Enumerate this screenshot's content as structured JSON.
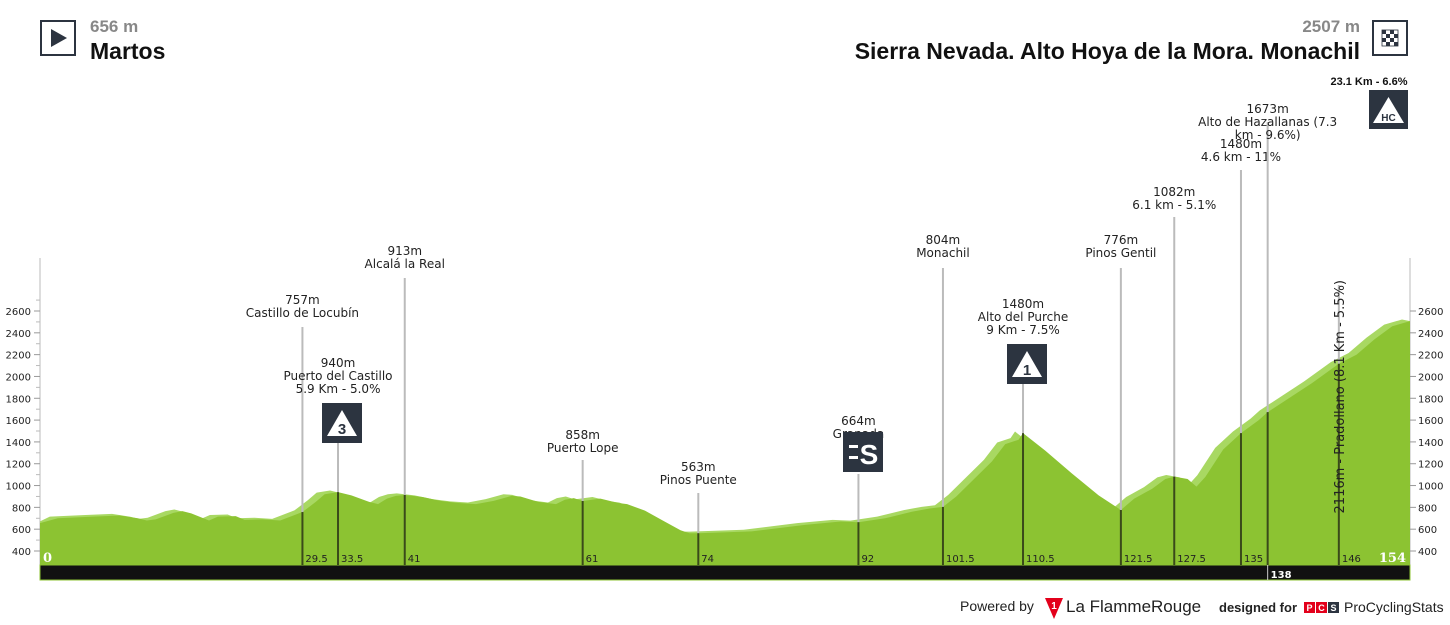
{
  "start": {
    "elevation": "656 m",
    "name": "Martos",
    "icon": "play-icon"
  },
  "finish": {
    "elevation": "2507 m",
    "name": "Sierra Nevada. Alto Hoya de la Mora. Monachil",
    "icon": "checkered-flag-icon",
    "climb_info": "23.1 Km - 6.6%",
    "category": "HC"
  },
  "footer": {
    "powered_by": "Powered by",
    "brand1": "La FlammeRouge",
    "brand1_logo": "1",
    "designed_for": "designed for",
    "brand2_logo": "PCS",
    "brand2": "ProCyclingStats"
  },
  "colors": {
    "profile": "#8cc332",
    "profile_light": "#a8d862",
    "bar": "#111111",
    "category_box": "#2c3440"
  },
  "chart_data": {
    "type": "area",
    "xlabel": "",
    "ylabel": "",
    "xlim": [
      0,
      154
    ],
    "ylim": [
      272,
      2600
    ],
    "yticks": [
      400,
      600,
      800,
      1000,
      1200,
      1400,
      1600,
      1800,
      2000,
      2200,
      2400,
      2600
    ],
    "x_start_label": "0",
    "x_end_label": "154",
    "profile": [
      [
        0,
        656
      ],
      [
        2,
        700
      ],
      [
        6,
        715
      ],
      [
        9,
        725
      ],
      [
        11,
        700
      ],
      [
        12,
        680
      ],
      [
        13,
        690
      ],
      [
        15,
        750
      ],
      [
        16,
        765
      ],
      [
        17,
        745
      ],
      [
        19,
        680
      ],
      [
        20,
        715
      ],
      [
        22,
        720
      ],
      [
        23,
        685
      ],
      [
        25,
        690
      ],
      [
        27,
        680
      ],
      [
        28,
        710
      ],
      [
        29.5,
        757
      ],
      [
        31,
        850
      ],
      [
        32,
        920
      ],
      [
        33.5,
        940
      ],
      [
        35,
        910
      ],
      [
        37,
        850
      ],
      [
        38,
        830
      ],
      [
        39,
        880
      ],
      [
        40,
        905
      ],
      [
        41,
        913
      ],
      [
        43,
        895
      ],
      [
        45,
        860
      ],
      [
        47,
        840
      ],
      [
        49,
        830
      ],
      [
        51,
        860
      ],
      [
        53,
        905
      ],
      [
        54,
        900
      ],
      [
        56,
        850
      ],
      [
        58,
        830
      ],
      [
        59,
        870
      ],
      [
        60,
        885
      ],
      [
        61,
        858
      ],
      [
        63,
        880
      ],
      [
        65,
        840
      ],
      [
        66,
        830
      ],
      [
        68,
        770
      ],
      [
        70,
        680
      ],
      [
        72,
        590
      ],
      [
        73,
        563
      ],
      [
        74,
        563
      ],
      [
        80,
        580
      ],
      [
        86,
        640
      ],
      [
        90,
        670
      ],
      [
        92,
        664
      ],
      [
        95,
        700
      ],
      [
        98,
        760
      ],
      [
        100,
        790
      ],
      [
        101.5,
        804
      ],
      [
        103,
        900
      ],
      [
        105,
        1060
      ],
      [
        107,
        1220
      ],
      [
        108.5,
        1380
      ],
      [
        110,
        1420
      ],
      [
        110.5,
        1480
      ],
      [
        113,
        1320
      ],
      [
        116,
        1110
      ],
      [
        119,
        910
      ],
      [
        121.5,
        776
      ],
      [
        123,
        880
      ],
      [
        125,
        970
      ],
      [
        126.5,
        1060
      ],
      [
        127.5,
        1082
      ],
      [
        129,
        1060
      ],
      [
        130,
        990
      ],
      [
        131,
        1080
      ],
      [
        133,
        1330
      ],
      [
        135,
        1480
      ],
      [
        137,
        1600
      ],
      [
        138,
        1673
      ],
      [
        140,
        1780
      ],
      [
        143,
        1940
      ],
      [
        146,
        2116
      ],
      [
        148,
        2200
      ],
      [
        150,
        2340
      ],
      [
        152,
        2460
      ],
      [
        154,
        2507
      ]
    ],
    "markers": [
      {
        "km": "29.5",
        "lines": [
          "757m",
          "Castillo de Locubín"
        ]
      },
      {
        "km": "33.5",
        "lines": [
          "940m",
          "Puerto del Castillo",
          "5.9 Km - 5.0%"
        ],
        "category": "3"
      },
      {
        "km": "41",
        "lines": [
          "913m",
          "Alcalá la Real"
        ]
      },
      {
        "km": "61",
        "lines": [
          "858m",
          "Puerto Lope"
        ]
      },
      {
        "km": "74",
        "lines": [
          "563m",
          "Pinos Puente"
        ]
      },
      {
        "km": "92",
        "lines": [
          "664m",
          "Granada"
        ],
        "sprint": "S"
      },
      {
        "km": "101.5",
        "lines": [
          "804m",
          "Monachil"
        ]
      },
      {
        "km": "110.5",
        "lines": [
          "1480m",
          "Alto del Purche",
          "9 Km - 7.5%"
        ],
        "category": "1"
      },
      {
        "km": "121.5",
        "lines": [
          "776m",
          "Pinos Gentil"
        ]
      },
      {
        "km": "127.5",
        "lines": [
          "1082m",
          "6.1 km - 5.1%"
        ]
      },
      {
        "km": "135",
        "lines": [
          "1480m",
          "4.6 km - 11%"
        ]
      },
      {
        "km": "138",
        "lines": [
          "1673m",
          "Alto de Hazallanas (7.3",
          "km - 9.6%)"
        ],
        "bar_label": true
      },
      {
        "km": "146",
        "lines": [
          "2116m - Pradollano (8.1 Km - 5.5%)"
        ],
        "vertical": true
      }
    ]
  }
}
